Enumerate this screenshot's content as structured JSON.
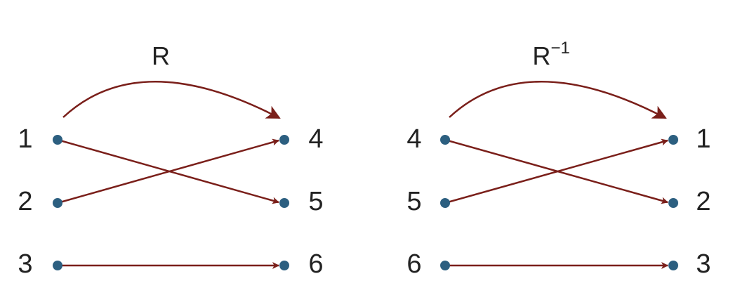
{
  "diagrams": [
    {
      "title": "R",
      "title_superscript": "",
      "left_labels": [
        "1",
        "2",
        "3"
      ],
      "right_labels": [
        "4",
        "5",
        "6"
      ],
      "mapping": [
        [
          0,
          1
        ],
        [
          1,
          0
        ],
        [
          2,
          2
        ]
      ]
    },
    {
      "title": "R",
      "title_superscript": "−1",
      "left_labels": [
        "4",
        "5",
        "6"
      ],
      "right_labels": [
        "1",
        "2",
        "3"
      ],
      "mapping": [
        [
          0,
          1
        ],
        [
          1,
          0
        ],
        [
          2,
          2
        ]
      ]
    }
  ],
  "colors": {
    "arrow": "#7a1f1a",
    "node": "#2c5f80",
    "text": "#222222"
  }
}
